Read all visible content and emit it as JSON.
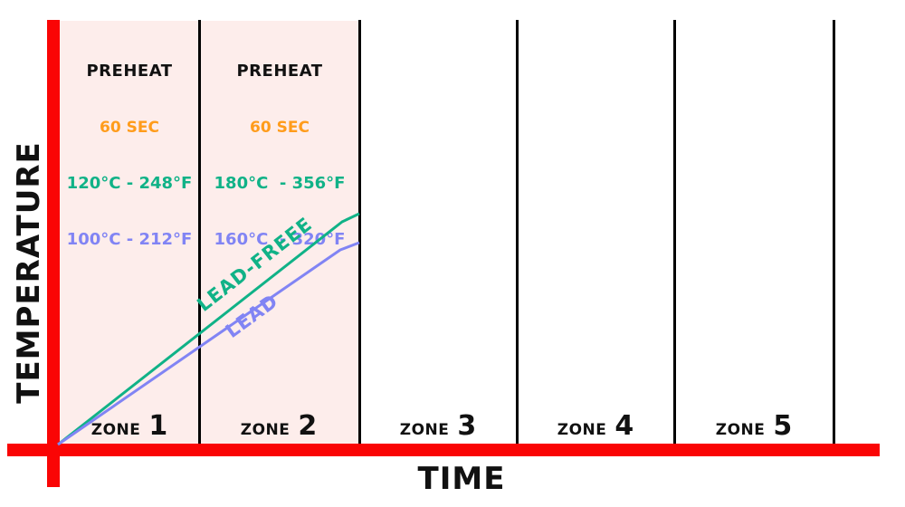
{
  "axes": {
    "y_label": "TEMPERATURE",
    "x_label": "TIME",
    "axis_color": "#fa0505"
  },
  "colors": {
    "axis_red": "#fa0505",
    "zone_highlight_pink": "#fdedeb",
    "orange": "#ff9c1b",
    "lead_free_teal": "#10b287",
    "lead_purple": "#8184f4",
    "text_black": "#111111"
  },
  "zones": [
    {
      "word": "ZONE",
      "number": "1",
      "highlighted": true,
      "annotation": {
        "title": "PREHEAT",
        "duration": "60 SEC",
        "lead_free": "120°C - 248°F",
        "lead": "100°C - 212°F"
      }
    },
    {
      "word": "ZONE",
      "number": "2",
      "highlighted": true,
      "annotation": {
        "title": "PREHEAT",
        "duration": "60 SEC",
        "lead_free": "180°C  - 356°F",
        "lead": "160°C  - 320°F"
      }
    },
    {
      "word": "ZONE",
      "number": "3",
      "highlighted": false
    },
    {
      "word": "ZONE",
      "number": "4",
      "highlighted": false
    },
    {
      "word": "ZONE",
      "number": "5",
      "highlighted": false
    }
  ],
  "curves": {
    "lead_free": {
      "label": "LEAD-FREEE",
      "color": "#10b287",
      "pixel_points": "64,491 378,245 397,236"
    },
    "lead": {
      "label": "LEAD",
      "color": "#8184f4",
      "pixel_points": "64,491 376,276 397,268"
    }
  },
  "chart_data": {
    "type": "line",
    "title": "",
    "xlabel": "TIME",
    "ylabel": "TEMPERATURE",
    "grid": false,
    "x_categories": [
      "ZONE 1",
      "ZONE 2",
      "ZONE 3",
      "ZONE 4",
      "ZONE 5"
    ],
    "series": [
      {
        "name": "LEAD-FREEE",
        "color": "#10b287",
        "points": [
          {
            "x": "origin",
            "temp_c": 0
          },
          {
            "x": "ZONE 1 end",
            "temp_c": 120,
            "temp_f": 248
          },
          {
            "x": "ZONE 2 end",
            "temp_c": 180,
            "temp_f": 356
          }
        ]
      },
      {
        "name": "LEAD",
        "color": "#8184f4",
        "points": [
          {
            "x": "origin",
            "temp_c": 0
          },
          {
            "x": "ZONE 1 end",
            "temp_c": 100,
            "temp_f": 212
          },
          {
            "x": "ZONE 2 end",
            "temp_c": 160,
            "temp_f": 320
          }
        ]
      }
    ],
    "annotations": [
      {
        "zone": "ZONE 1",
        "title": "PREHEAT",
        "duration": "60 SEC",
        "lead_free": "120°C - 248°F",
        "lead": "100°C - 212°F"
      },
      {
        "zone": "ZONE 2",
        "title": "PREHEAT",
        "duration": "60 SEC",
        "lead_free": "180°C  - 356°F",
        "lead": "160°C  - 320°F"
      }
    ],
    "notes": "Zones 1 and 2 are highlighted pink; both lines start at the axis origin and rise through zones 1-2, flattening slightly at the end of zone 2."
  }
}
